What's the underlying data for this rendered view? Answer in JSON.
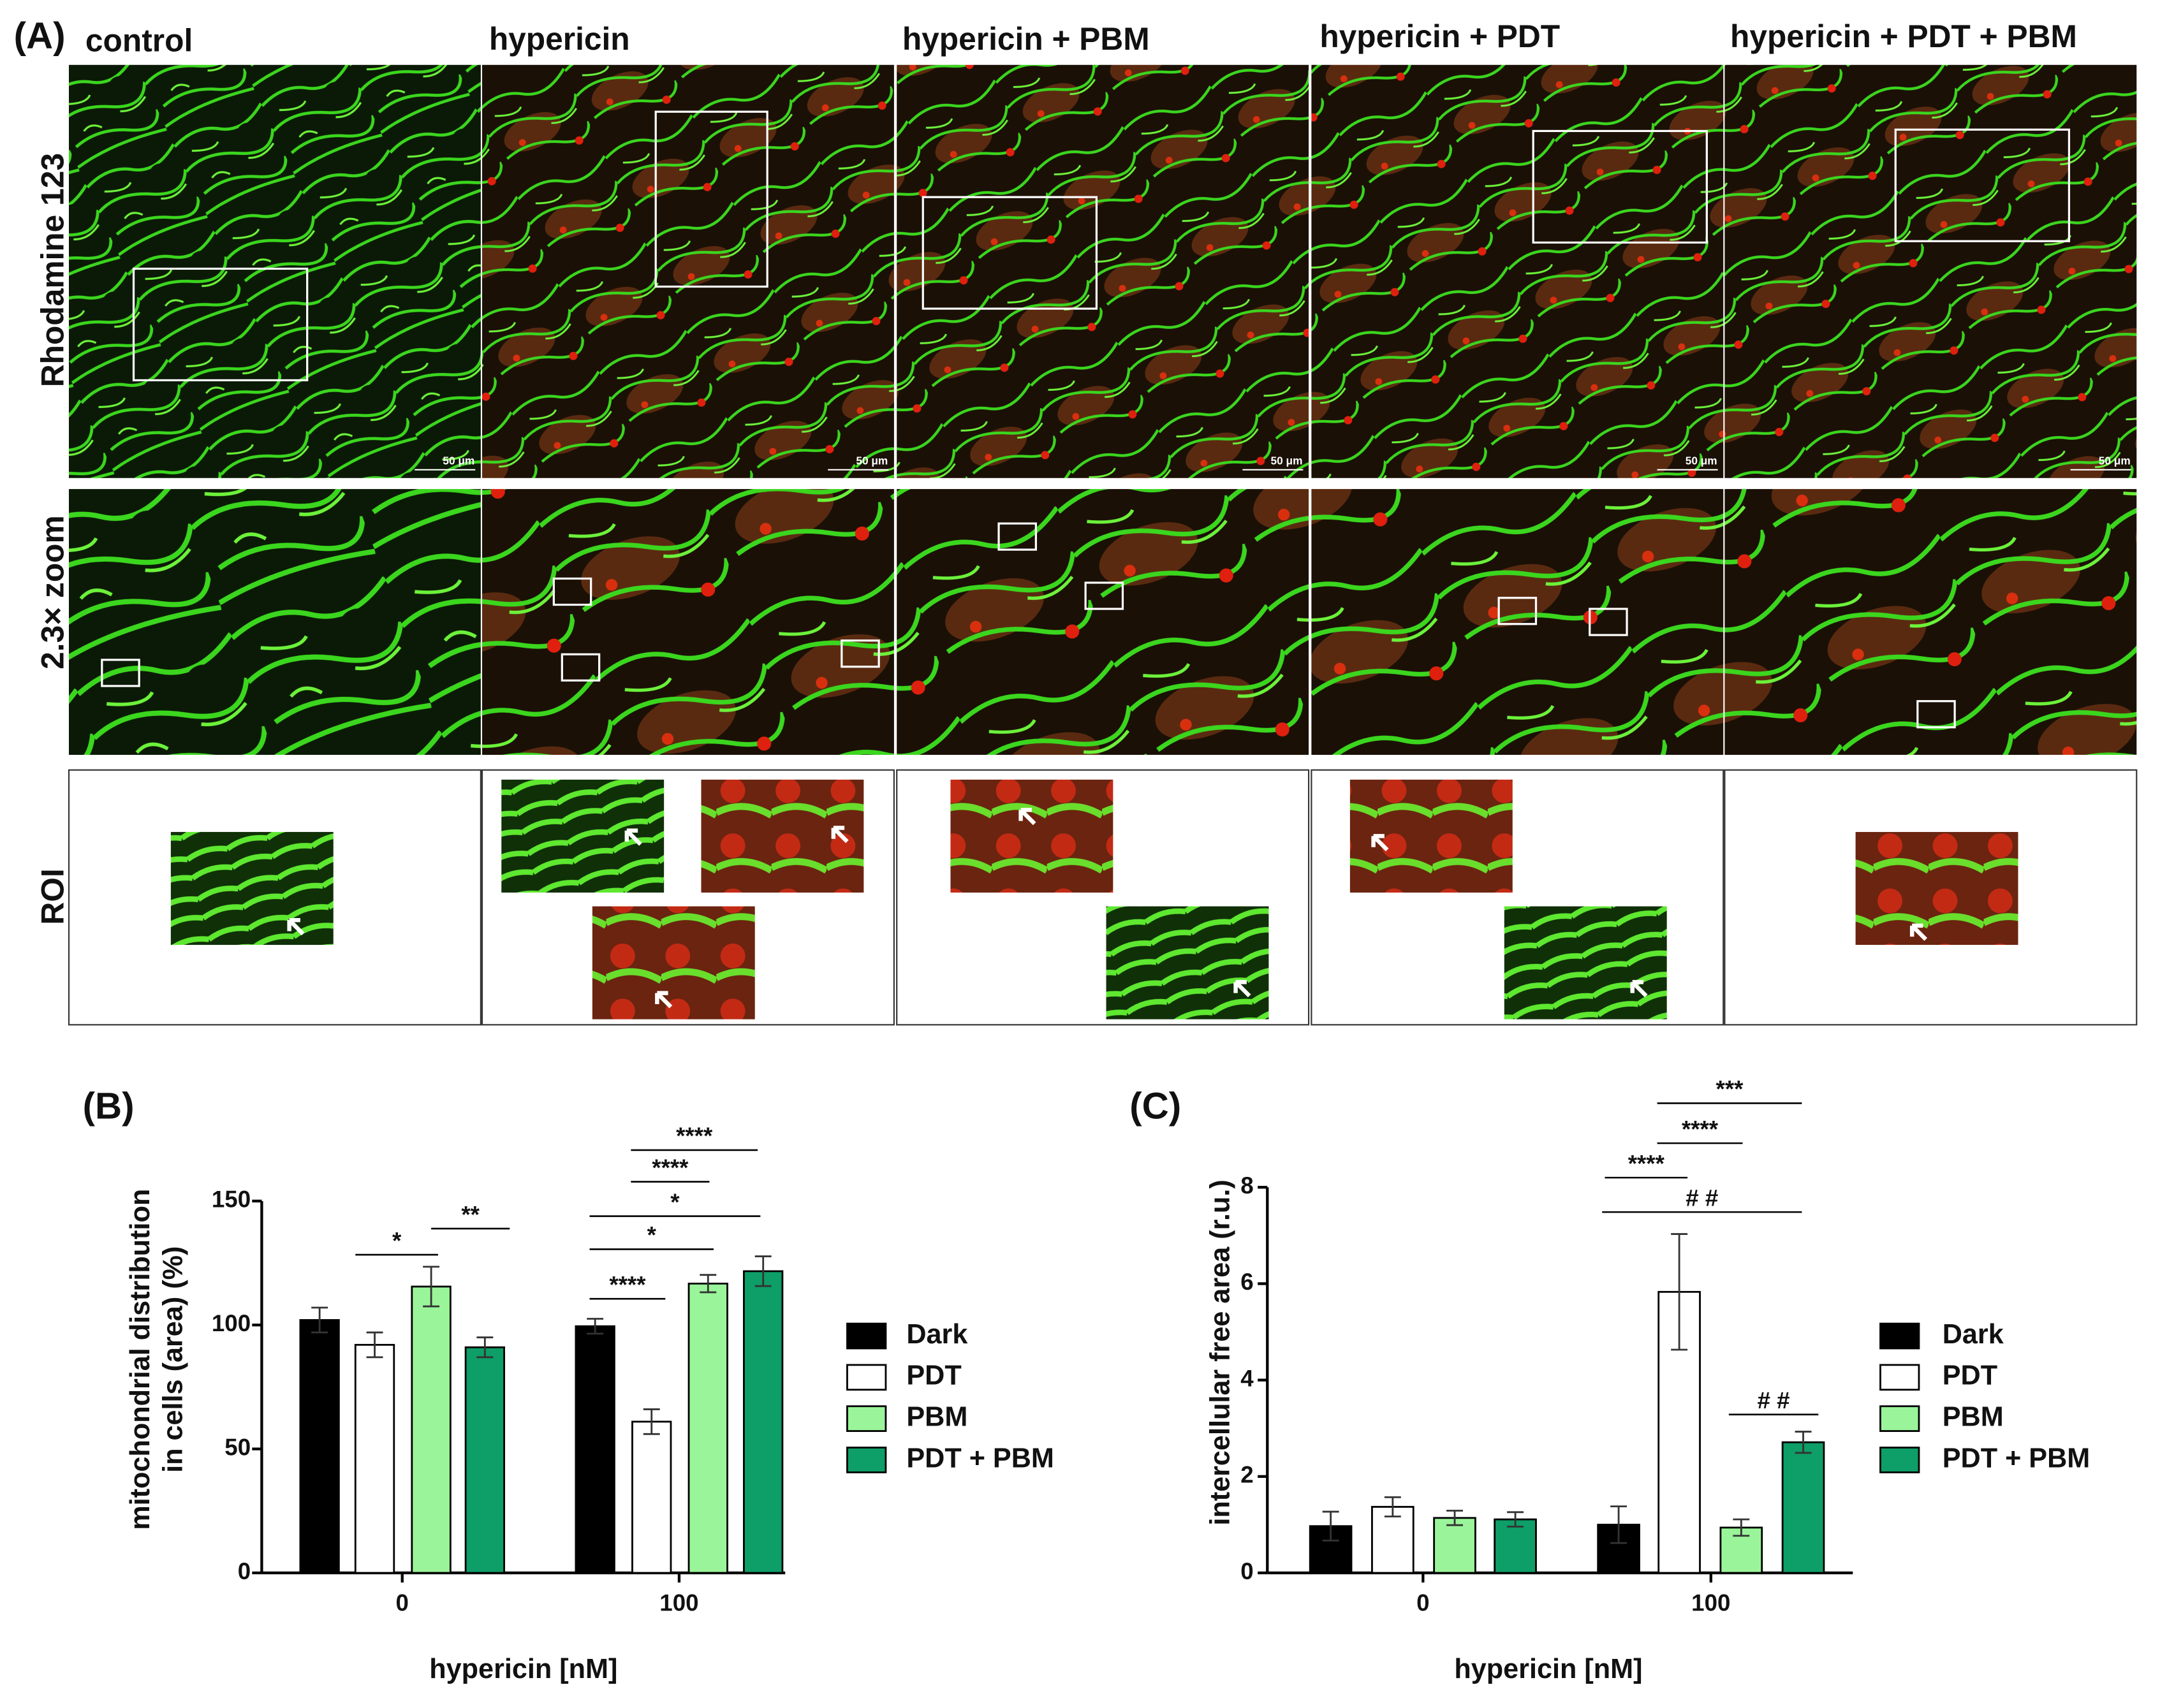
{
  "panel_a": {
    "label": "(A)",
    "columns": [
      "control",
      "hypericin",
      "hypericin + PBM",
      "hypericin + PDT",
      "hypericin + PDT + PBM"
    ],
    "rows": [
      "Rhodamine 123",
      "2.3× zoom",
      "ROI"
    ],
    "scale_bar": "50 μm"
  },
  "chart_data": [
    {
      "type": "bar",
      "panel_label": "(B)",
      "ylabel": [
        "mitochondrial distribution",
        "in cells (area)  (%)"
      ],
      "xlabel": "hypericin [nM]",
      "categories": [
        "0",
        "100"
      ],
      "series": [
        {
          "name": "Dark",
          "color": "#000000",
          "values": [
            102,
            99.5
          ],
          "errors": [
            5,
            3
          ]
        },
        {
          "name": "PDT",
          "color": "#ffffff",
          "values": [
            92,
            61
          ],
          "errors": [
            5,
            5
          ]
        },
        {
          "name": "PBM",
          "color": "#9af59a",
          "values": [
            115.5,
            116.7
          ],
          "errors": [
            8,
            3.5
          ]
        },
        {
          "name": "PDT + PBM",
          "color": "#0e9e68",
          "values": [
            91,
            121.7
          ],
          "errors": [
            4,
            6
          ]
        }
      ],
      "ylim": [
        0,
        150
      ],
      "yticks": [
        0,
        50,
        100,
        150
      ],
      "annotations": [
        "*",
        "**",
        "****",
        "*",
        "*",
        "****",
        "****"
      ]
    },
    {
      "type": "bar",
      "panel_label": "(C)",
      "ylabel": [
        "intercellular free area (r.u.)"
      ],
      "xlabel": "hypericin [nM]",
      "categories": [
        "0",
        "100"
      ],
      "series": [
        {
          "name": "Dark",
          "color": "#000000",
          "values": [
            0.97,
            1.0
          ],
          "errors": [
            0.3,
            0.38
          ]
        },
        {
          "name": "PDT",
          "color": "#ffffff",
          "values": [
            1.37,
            5.83
          ],
          "errors": [
            0.2,
            1.2
          ]
        },
        {
          "name": "PBM",
          "color": "#9af59a",
          "values": [
            1.14,
            0.94
          ],
          "errors": [
            0.15,
            0.17
          ]
        },
        {
          "name": "PDT + PBM",
          "color": "#0e9e68",
          "values": [
            1.11,
            2.71
          ],
          "errors": [
            0.15,
            0.22
          ]
        }
      ],
      "ylim": [
        0,
        8
      ],
      "yticks": [
        0,
        2,
        4,
        6,
        8
      ],
      "annotations": [
        "****",
        "****",
        "***",
        "# #",
        "# #"
      ]
    }
  ]
}
